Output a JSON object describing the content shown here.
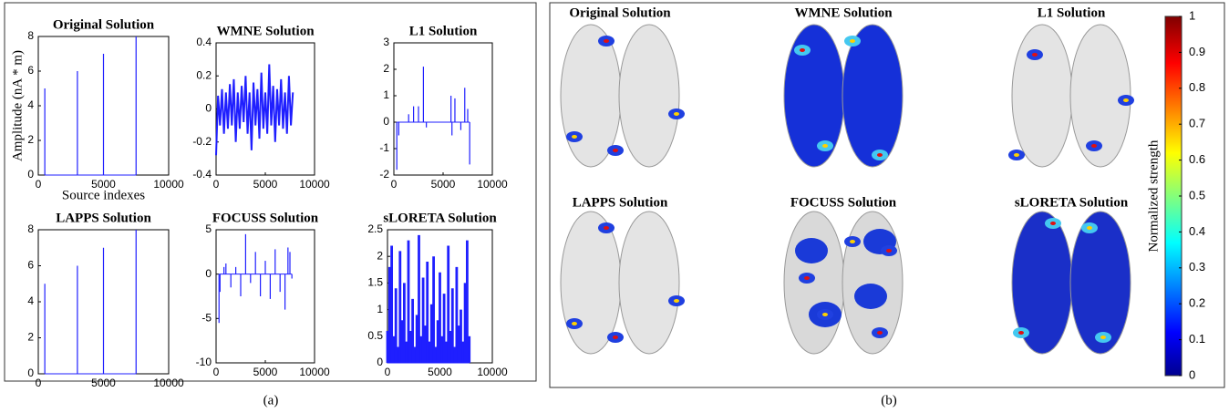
{
  "chart_data": [
    {
      "type": "stem",
      "title": "Original Solution",
      "y_label": "Amplitude (nA * m)",
      "x_label": "Source indexes",
      "color": "#1f1fff",
      "x": [
        500,
        3000,
        5000,
        7500
      ],
      "values": [
        5,
        6,
        7,
        8
      ],
      "xlim": [
        0,
        10000
      ],
      "xticks": [
        0,
        5000,
        10000
      ],
      "ylim": [
        0,
        8
      ],
      "yticks": [
        0,
        2,
        4,
        6,
        8
      ]
    },
    {
      "type": "line",
      "title": "WMNE Solution",
      "color": "#1f1fff",
      "x": [
        0,
        200,
        400,
        600,
        800,
        1000,
        1200,
        1400,
        1600,
        1800,
        2000,
        2200,
        2400,
        2600,
        2800,
        3000,
        3200,
        3400,
        3600,
        3800,
        4000,
        4200,
        4400,
        4600,
        4800,
        5000,
        5200,
        5400,
        5600,
        5800,
        6000,
        6200,
        6400,
        6600,
        6800,
        7000,
        7200,
        7400,
        7600,
        7800
      ],
      "values": [
        -0.28,
        0.08,
        -0.1,
        0.12,
        -0.15,
        0.1,
        -0.12,
        0.15,
        -0.1,
        0.18,
        -0.2,
        0.1,
        -0.12,
        0.14,
        -0.08,
        0.2,
        -0.15,
        0.1,
        -0.25,
        0.16,
        -0.1,
        0.12,
        -0.18,
        0.22,
        -0.12,
        0.1,
        -0.15,
        0.27,
        -0.1,
        0.14,
        -0.2,
        0.12,
        -0.1,
        0.18,
        -0.12,
        0.1,
        -0.15,
        0.2,
        -0.1,
        0.1
      ],
      "xlim": [
        0,
        10000
      ],
      "xticks": [
        0,
        5000,
        10000
      ],
      "ylim": [
        -0.4,
        0.4
      ],
      "yticks": [
        -0.4,
        -0.2,
        0,
        0.2,
        0.4
      ]
    },
    {
      "type": "stem",
      "title": "L1 Solution",
      "color": "#1f1fff",
      "x": [
        300,
        500,
        1500,
        2000,
        2500,
        3000,
        3300,
        5800,
        5900,
        6200,
        6800,
        7200,
        7500,
        7700
      ],
      "values": [
        -1.8,
        -0.5,
        0.3,
        0.6,
        0.6,
        2.1,
        -0.2,
        1.0,
        -0.5,
        0.9,
        -0.3,
        1.3,
        0.5,
        -1.6
      ],
      "xlim": [
        0,
        10000
      ],
      "xticks": [
        0,
        5000,
        10000
      ],
      "ylim": [
        -2,
        3
      ],
      "yticks": [
        -2,
        -1,
        0,
        1,
        2,
        3
      ]
    },
    {
      "type": "stem",
      "title": "LAPPS Solution",
      "color": "#1f1fff",
      "x": [
        500,
        3000,
        5000,
        7500
      ],
      "values": [
        5,
        6,
        7,
        8
      ],
      "xlim": [
        0,
        10000
      ],
      "xticks": [
        0,
        5000,
        10000
      ],
      "ylim": [
        0,
        8
      ],
      "yticks": [
        0,
        2,
        4,
        6,
        8
      ]
    },
    {
      "type": "stem",
      "title": "FOCUSS Solution",
      "color": "#1f1fff",
      "x": [
        300,
        400,
        800,
        1000,
        1500,
        2000,
        2500,
        3000,
        3500,
        4000,
        4500,
        5000,
        5500,
        6000,
        6500,
        7000,
        7300,
        7500,
        7700
      ],
      "values": [
        -5.5,
        -2,
        0.8,
        1.2,
        -1.5,
        0.8,
        -2.5,
        4.5,
        -1,
        2.5,
        -2.5,
        1.5,
        -2.8,
        2.8,
        -2,
        -4,
        3,
        2.5,
        -0.5
      ],
      "xlim": [
        0,
        10000
      ],
      "xticks": [
        0,
        5000,
        10000
      ],
      "ylim": [
        -10,
        5
      ],
      "yticks": [
        -10,
        -5,
        0,
        5
      ]
    },
    {
      "type": "stem",
      "title": "sLORETA Solution",
      "color": "#1f1fff",
      "x": [
        0,
        200,
        400,
        600,
        800,
        1000,
        1200,
        1400,
        1600,
        1800,
        2000,
        2200,
        2400,
        2600,
        2800,
        3000,
        3200,
        3400,
        3600,
        3800,
        4000,
        4200,
        4400,
        4600,
        4800,
        5000,
        5200,
        5400,
        5600,
        5800,
        6000,
        6200,
        6400,
        6600,
        6800,
        7000,
        7200,
        7400,
        7600,
        7800
      ],
      "values": [
        0.6,
        1.8,
        2.2,
        0.5,
        1.4,
        0.3,
        2.1,
        0.8,
        1.5,
        0.4,
        2.3,
        0.6,
        1.2,
        0.3,
        0.9,
        2.4,
        0.5,
        1.6,
        0.7,
        1.9,
        0.4,
        1.1,
        2.0,
        0.3,
        0.8,
        1.7,
        0.5,
        1.3,
        0.4,
        2.2,
        0.6,
        1.4,
        0.3,
        1.8,
        0.7,
        1.0,
        0.4,
        1.5,
        2.3,
        0.5
      ],
      "xlim": [
        0,
        10000
      ],
      "xticks": [
        0,
        5000,
        10000
      ],
      "ylim": [
        0,
        2.5
      ],
      "yticks": [
        0,
        0.5,
        1,
        1.5,
        2,
        2.5
      ]
    }
  ],
  "brain_titles": [
    "Original Solution",
    "WMNE Solution",
    "L1 Solution",
    "LAPPS Solution",
    "FOCUSS Solution",
    "sLORETA Solution"
  ],
  "colorbar": {
    "label": "Normalized strength",
    "ylim": [
      0,
      1
    ],
    "yticks": [
      0,
      0.1,
      0.2,
      0.3,
      0.4,
      0.5,
      0.6,
      0.7,
      0.8,
      0.9,
      1
    ]
  },
  "captions": [
    "(a)",
    "(b)"
  ]
}
